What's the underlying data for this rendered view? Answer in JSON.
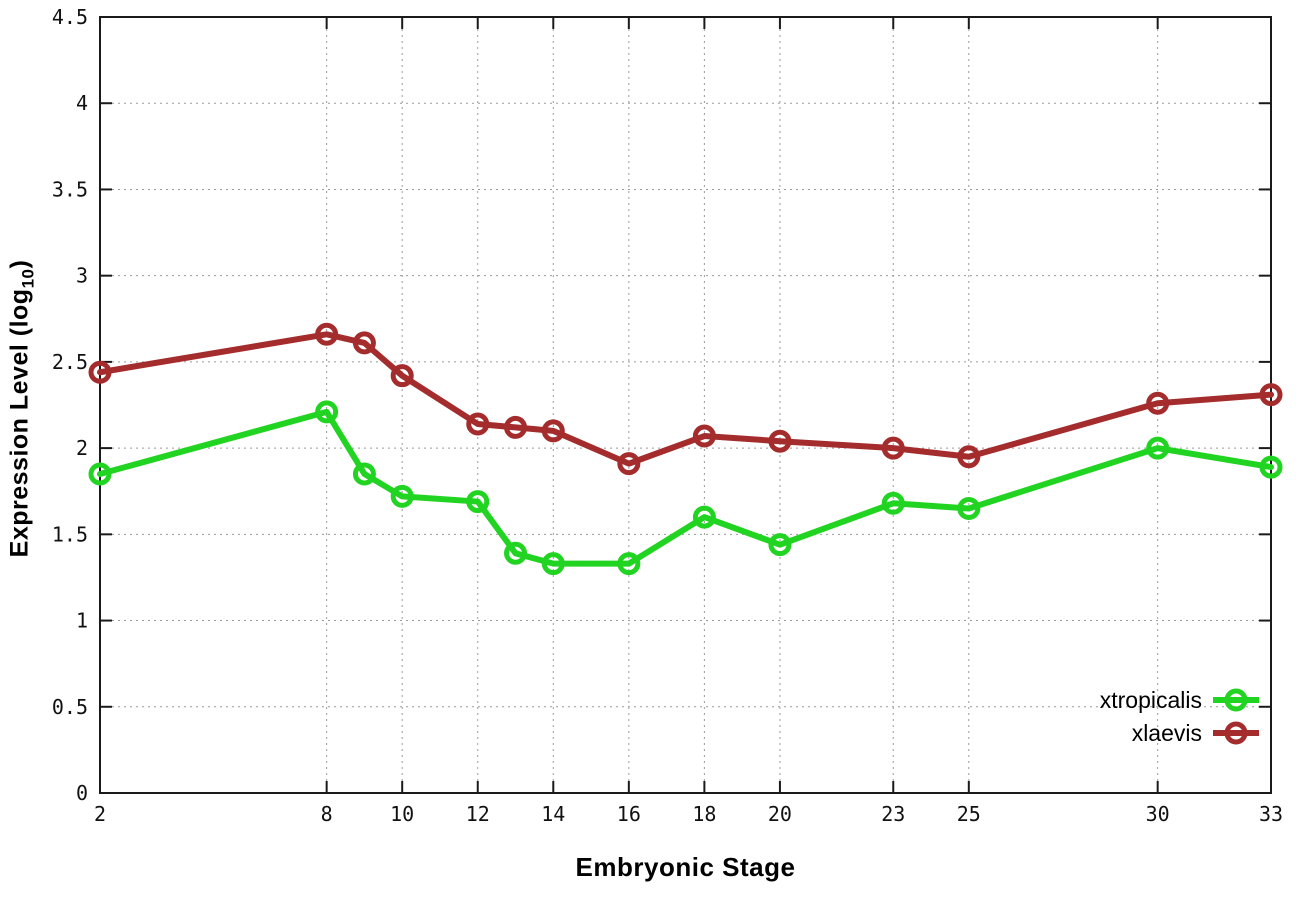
{
  "chart_data": {
    "type": "line",
    "x": [
      2,
      8,
      9,
      10,
      12,
      13,
      14,
      16,
      18,
      20,
      23,
      25,
      30,
      33
    ],
    "series": [
      {
        "name": "xtropicalis",
        "color": "#22d422",
        "values": [
          1.85,
          2.21,
          1.85,
          1.72,
          1.69,
          1.39,
          1.33,
          1.33,
          1.6,
          1.44,
          1.68,
          1.65,
          2.0,
          1.89
        ]
      },
      {
        "name": "xlaevis",
        "color": "#a42c2c",
        "values": [
          2.44,
          2.66,
          2.61,
          2.42,
          2.14,
          2.12,
          2.1,
          1.91,
          2.07,
          2.04,
          2.0,
          1.95,
          2.26,
          2.31
        ]
      }
    ],
    "xlabel": "Embryonic Stage",
    "ylabel_prefix": "Expression Level (log",
    "ylabel_sub": "10",
    "ylabel_suffix": ")",
    "xticks": [
      2,
      8,
      10,
      12,
      14,
      16,
      18,
      20,
      23,
      25,
      30,
      33
    ],
    "yticks": [
      "0",
      "0.5",
      "1",
      "1.5",
      "2",
      "2.5",
      "3",
      "3.5",
      "4",
      "4.5"
    ],
    "ytick_values": [
      0,
      0.5,
      1,
      1.5,
      2,
      2.5,
      3,
      3.5,
      4,
      4.5
    ],
    "xlim": [
      2,
      33
    ],
    "ylim": [
      0,
      4.5
    ],
    "grid": true,
    "grid_style": "dotted",
    "legend_position": "inside-bottom-right",
    "border_color": "#1a1a1a",
    "grid_color": "#9a9a9a"
  }
}
